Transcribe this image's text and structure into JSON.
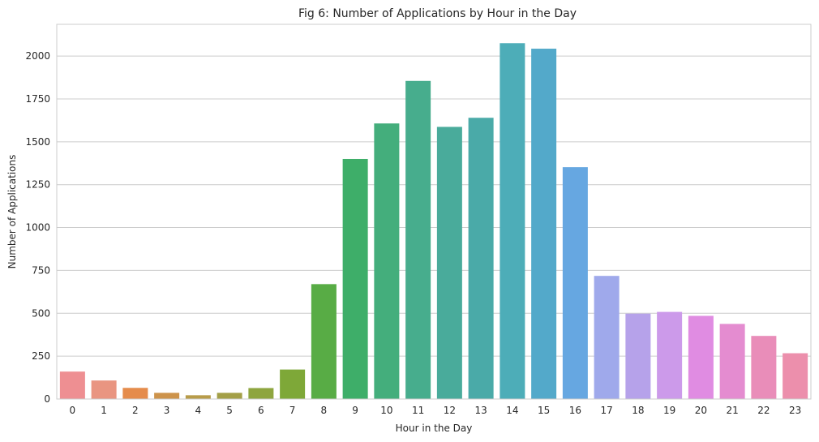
{
  "chart_data": {
    "type": "bar",
    "title": "Fig 6: Number of Applications by Hour in the Day",
    "xlabel": "Hour in the Day",
    "ylabel": "Number of Applications",
    "categories": [
      "0",
      "1",
      "2",
      "3",
      "4",
      "5",
      "6",
      "7",
      "8",
      "9",
      "10",
      "11",
      "12",
      "13",
      "14",
      "15",
      "16",
      "17",
      "18",
      "19",
      "20",
      "21",
      "22",
      "23"
    ],
    "values": [
      160,
      108,
      65,
      36,
      22,
      36,
      64,
      172,
      670,
      1400,
      1607,
      1855,
      1587,
      1640,
      2075,
      2043,
      1352,
      718,
      498,
      508,
      485,
      438,
      368,
      267
    ],
    "ylim": [
      0,
      2185
    ],
    "yticks": [
      0,
      250,
      500,
      750,
      1000,
      1250,
      1500,
      1750,
      2000
    ],
    "grid": "horizontal",
    "colors": [
      "#ee8f92",
      "#e99581",
      "#e58c4c",
      "#cd934b",
      "#b89c49",
      "#a39f47",
      "#8ea53f",
      "#7ea838",
      "#58ac45",
      "#3eae69",
      "#44ae7c",
      "#47ad8d",
      "#49ab9b",
      "#4aaaa8",
      "#4dadb8",
      "#53a9ca",
      "#66a7e1",
      "#9fa9eb",
      "#b6a2ea",
      "#cc9aea",
      "#e08ce2",
      "#e48cd0",
      "#e98db9",
      "#ec8fac"
    ]
  }
}
